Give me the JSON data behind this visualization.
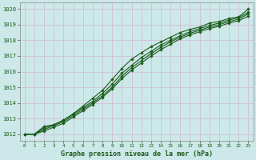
{
  "title": "Graphe pression niveau de la mer (hPa)",
  "bg_color": "#cce8e8",
  "grid_color": "#d4b8d4",
  "line_color": "#1a5c1a",
  "ylim": [
    1011.6,
    1020.4
  ],
  "xlim": [
    -0.5,
    23.5
  ],
  "yticks": [
    1012,
    1013,
    1014,
    1015,
    1016,
    1017,
    1018,
    1019,
    1020
  ],
  "xticks": [
    0,
    1,
    2,
    3,
    4,
    5,
    6,
    7,
    8,
    9,
    10,
    11,
    12,
    13,
    14,
    15,
    16,
    17,
    18,
    19,
    20,
    21,
    22,
    23
  ],
  "series1": [
    1012.0,
    1012.0,
    1012.5,
    1012.6,
    1012.9,
    1013.3,
    1013.8,
    1014.3,
    1014.8,
    1015.5,
    1016.2,
    1016.8,
    1017.2,
    1017.6,
    1017.9,
    1018.2,
    1018.5,
    1018.7,
    1018.85,
    1019.1,
    1019.2,
    1019.4,
    1019.5,
    1020.0
  ],
  "series2": [
    1012.0,
    1012.0,
    1012.4,
    1012.6,
    1012.9,
    1013.3,
    1013.7,
    1014.1,
    1014.6,
    1015.2,
    1015.9,
    1016.4,
    1016.9,
    1017.3,
    1017.7,
    1018.0,
    1018.3,
    1018.55,
    1018.75,
    1018.95,
    1019.1,
    1019.3,
    1019.45,
    1019.8
  ],
  "series3": [
    1012.0,
    1012.0,
    1012.3,
    1012.55,
    1012.8,
    1013.2,
    1013.6,
    1014.0,
    1014.45,
    1015.0,
    1015.7,
    1016.25,
    1016.7,
    1017.15,
    1017.55,
    1017.9,
    1018.2,
    1018.45,
    1018.65,
    1018.85,
    1019.0,
    1019.2,
    1019.35,
    1019.7
  ],
  "series4": [
    1012.0,
    1012.0,
    1012.2,
    1012.45,
    1012.7,
    1013.1,
    1013.5,
    1013.9,
    1014.35,
    1014.9,
    1015.55,
    1016.1,
    1016.55,
    1017.0,
    1017.4,
    1017.75,
    1018.1,
    1018.35,
    1018.55,
    1018.75,
    1018.9,
    1019.1,
    1019.25,
    1019.55
  ]
}
